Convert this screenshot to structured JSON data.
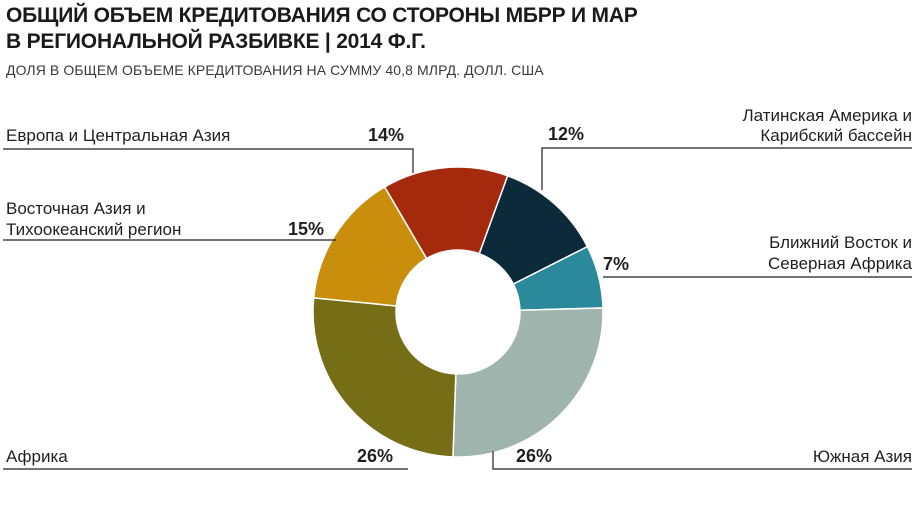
{
  "header": {
    "title_line1": "ОБЩИЙ ОБЪЕМ КРЕДИТОВАНИЯ СО СТОРОНЫ МБРР И МАР",
    "title_line2": "В РЕГИОНАЛЬНОЙ РАЗБИВКЕ | 2014 Ф.Г.",
    "subtitle": "ДОЛЯ В ОБЩЕМ ОБЪЕМЕ КРЕДИТОВАНИЯ НА СУММУ 40,8 МЛРД. ДОЛЛ. США"
  },
  "chart_data": {
    "type": "pie",
    "donut": true,
    "title": "ОБЩИЙ ОБЪЕМ КРЕДИТОВАНИЯ СО СТОРОНЫ МБРР И МАР В РЕГИОНАЛЬНОЙ РАЗБИВКЕ | 2014 Ф.Г.",
    "subtitle": "ДОЛЯ В ОБЩЕМ ОБЪЕМЕ КРЕДИТОВАНИЯ НА СУММУ 40,8 МЛРД. ДОЛЛ. США",
    "slices": [
      {
        "name_lines": [
          "Латинская Америка и",
          "Карибский бассейн"
        ],
        "value": 12,
        "label": "12%",
        "color": "#0d2a3b"
      },
      {
        "name_lines": [
          "Ближний Восток и",
          "Северная Африка"
        ],
        "value": 7,
        "label": "7%",
        "color": "#2a8a9b"
      },
      {
        "name_lines": [
          "Южная Азия"
        ],
        "value": 26,
        "label": "26%",
        "color": "#9fb4ad"
      },
      {
        "name_lines": [
          "Африка"
        ],
        "value": 26,
        "label": "26%",
        "color": "#766e17"
      },
      {
        "name_lines": [
          "Восточная Азия и",
          "Тихоокеанский регион"
        ],
        "value": 15,
        "label": "15%",
        "color": "#c88e0c"
      },
      {
        "name_lines": [
          "Европа и Центральная Азия"
        ],
        "value": 14,
        "label": "14%",
        "color": "#a52a0d"
      }
    ]
  }
}
